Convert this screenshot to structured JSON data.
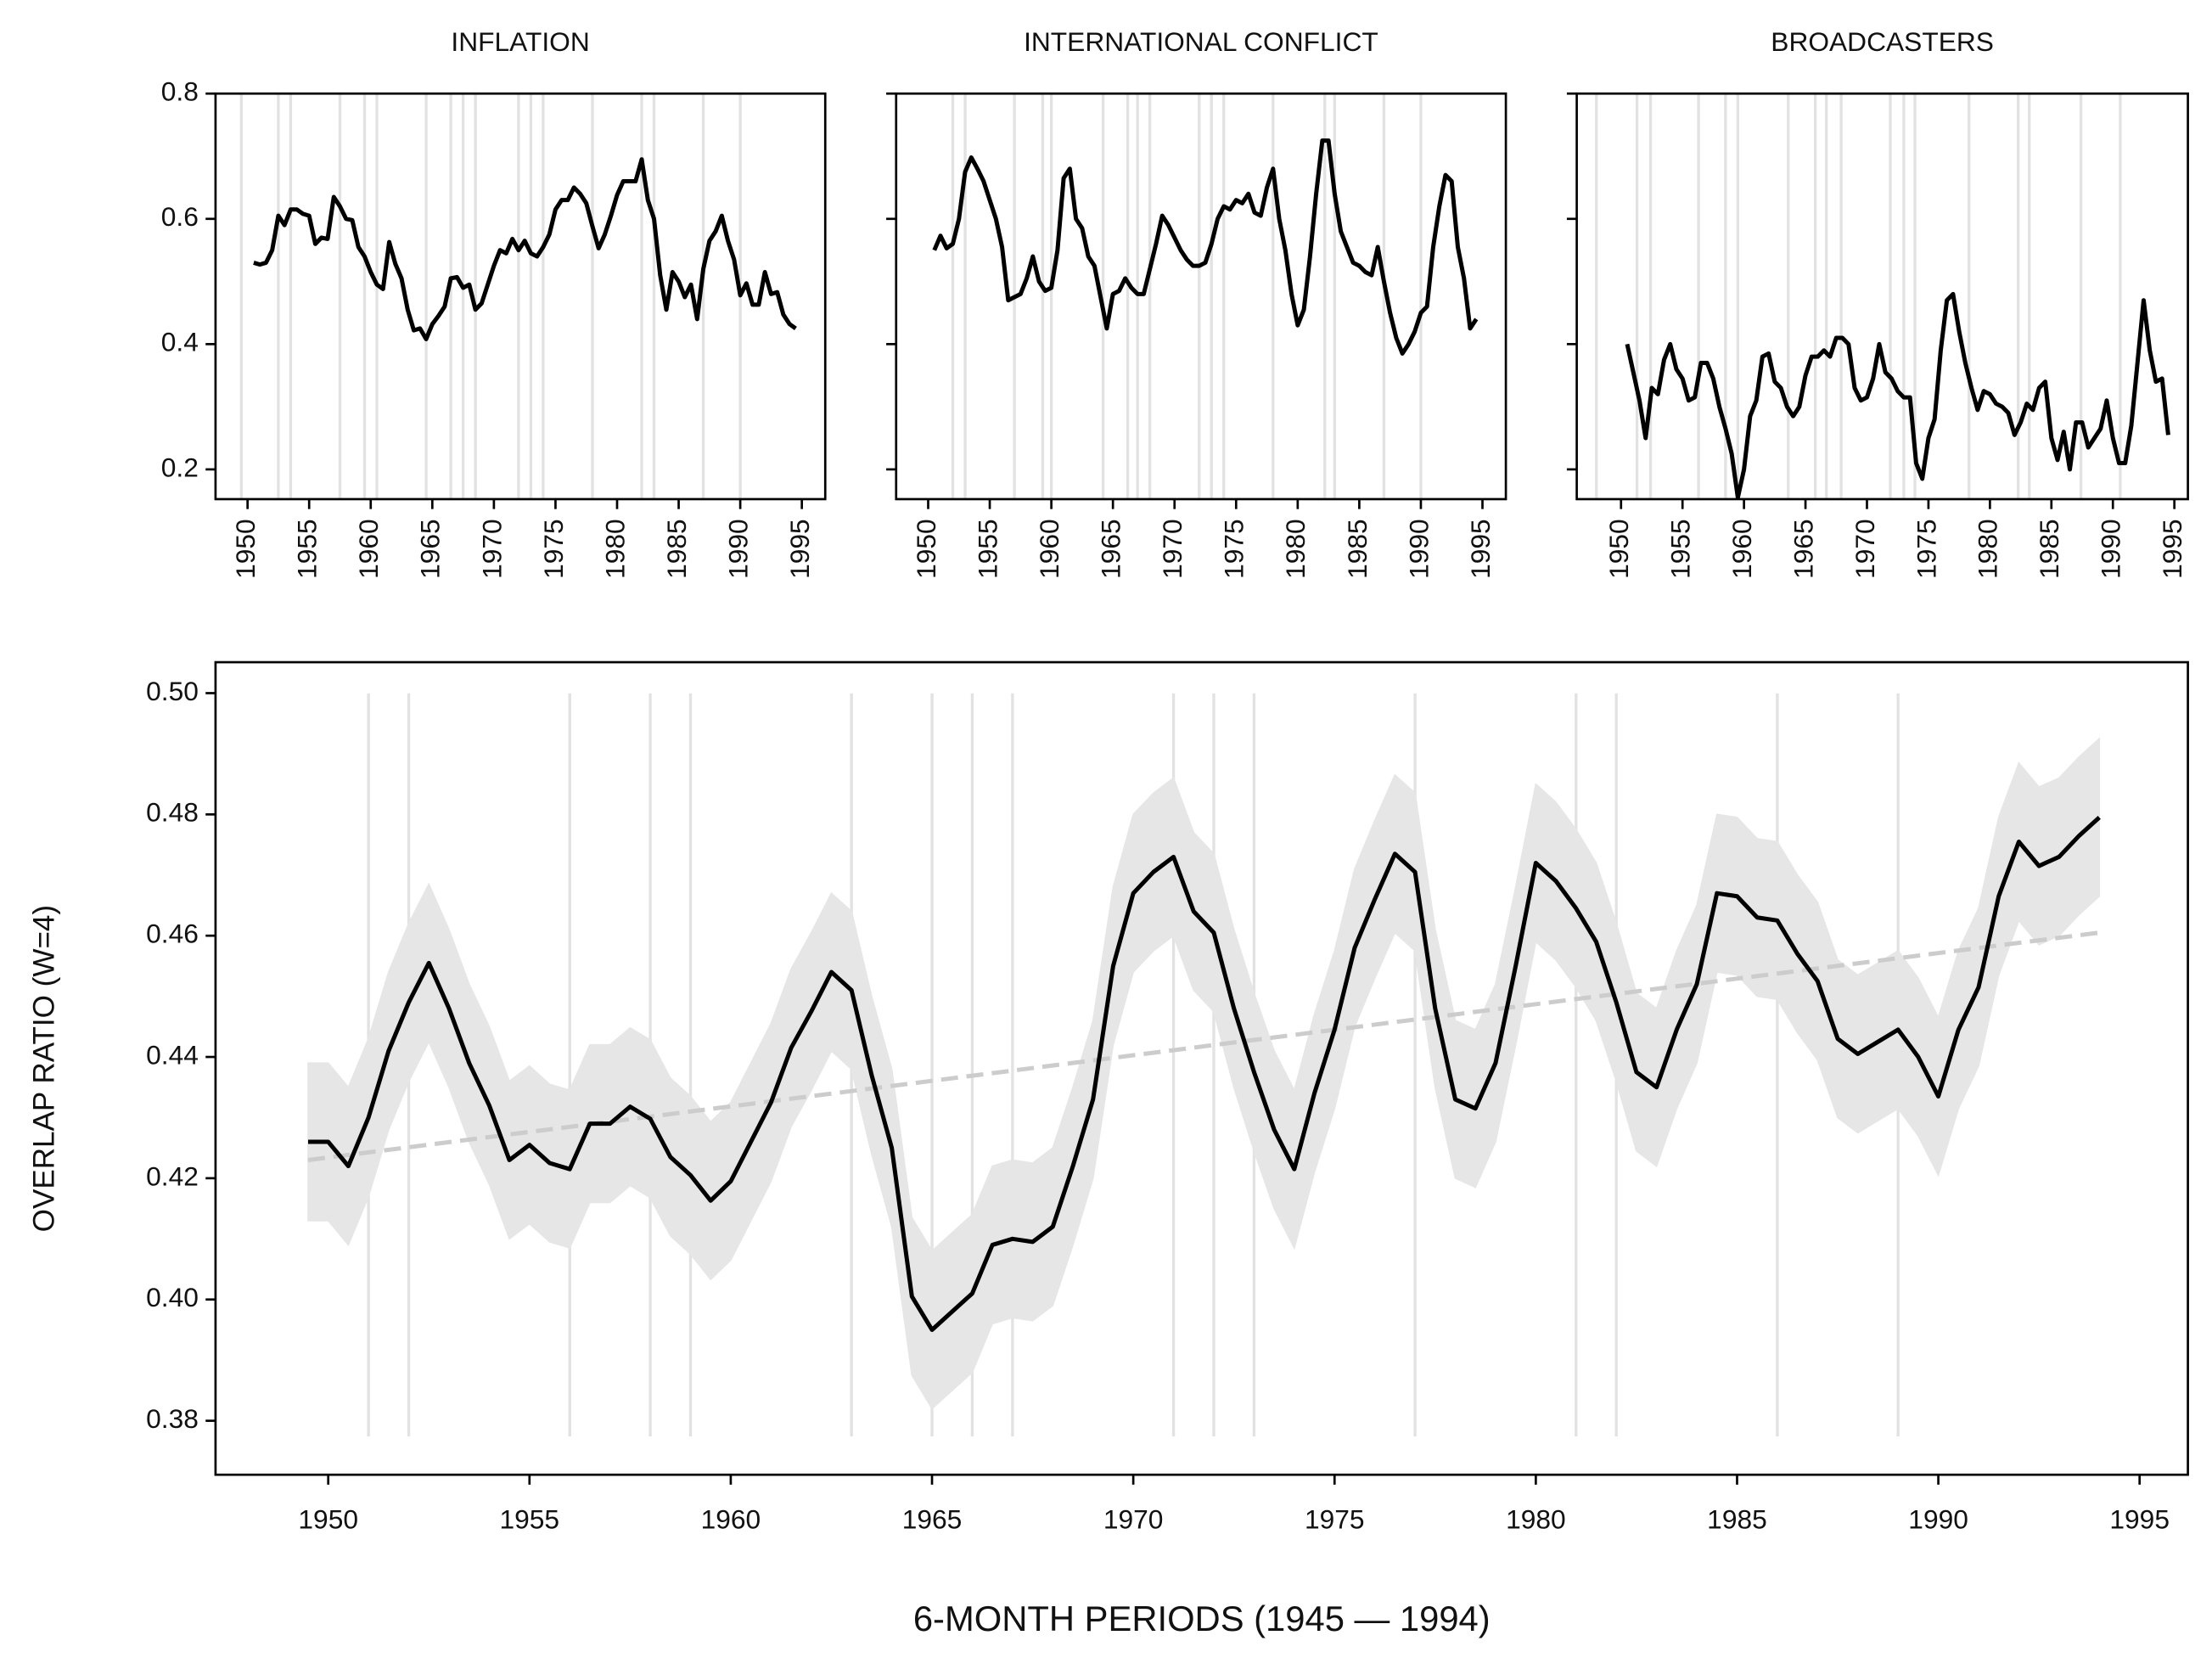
{
  "chart_data": [
    {
      "type": "line",
      "title": "INFLATION",
      "x": [
        1950.5,
        1951,
        1951.5,
        1952,
        1952.5,
        1953,
        1953.5,
        1954,
        1954.5,
        1955,
        1955.5,
        1956,
        1956.5,
        1957,
        1957.5,
        1958,
        1958.5,
        1959,
        1959.5,
        1960,
        1960.5,
        1961,
        1961.5,
        1962,
        1962.5,
        1963,
        1963.5,
        1964,
        1964.5,
        1965,
        1965.5,
        1966,
        1966.5,
        1967,
        1967.5,
        1968,
        1968.5,
        1969,
        1969.5,
        1970,
        1970.5,
        1971,
        1971.5,
        1972,
        1972.5,
        1973,
        1973.5,
        1974,
        1974.5,
        1975,
        1975.5,
        1976,
        1976.5,
        1977,
        1977.5,
        1978,
        1978.5,
        1979,
        1979.5,
        1980,
        1980.5,
        1981,
        1981.5,
        1982,
        1982.5,
        1983,
        1983.5,
        1984,
        1984.5,
        1985,
        1985.5,
        1986,
        1986.5,
        1987,
        1987.5,
        1988,
        1988.5,
        1989,
        1989.5,
        1990,
        1990.5,
        1991,
        1991.5,
        1992,
        1992.5,
        1993,
        1993.5,
        1994,
        1994.5
      ],
      "series": [
        {
          "color": "#000000",
          "values": [
            0.53,
            0.527,
            0.53,
            0.55,
            0.605,
            0.59,
            0.615,
            0.615,
            0.608,
            0.605,
            0.56,
            0.57,
            0.568,
            0.635,
            0.62,
            0.6,
            0.598,
            0.555,
            0.54,
            0.515,
            0.495,
            0.488,
            0.563,
            0.528,
            0.505,
            0.455,
            0.422,
            0.425,
            0.408,
            0.432,
            0.445,
            0.46,
            0.505,
            0.507,
            0.49,
            0.495,
            0.455,
            0.465,
            0.495,
            0.525,
            0.55,
            0.545,
            0.568,
            0.55,
            0.565,
            0.545,
            0.54,
            0.555,
            0.575,
            0.615,
            0.63,
            0.63,
            0.65,
            0.64,
            0.625,
            0.588,
            0.553,
            0.575,
            0.605,
            0.638,
            0.66,
            0.66,
            0.66,
            0.695,
            0.63,
            0.6,
            0.51,
            0.455,
            0.515,
            0.5,
            0.475,
            0.495,
            0.44,
            0.52,
            0.565,
            0.58,
            0.605,
            0.565,
            0.535,
            0.478,
            0.497,
            0.463,
            0.463,
            0.515,
            0.48,
            0.483,
            0.447,
            0.432,
            0.425
          ]
        }
      ],
      "event_lines": [
        1949.5,
        1952.5,
        1953.5,
        1957.5,
        1959.5,
        1960.5,
        1964.5,
        1966.5,
        1967.5,
        1968.5,
        1972,
        1973,
        1974,
        1978,
        1982,
        1983,
        1987,
        1990
      ],
      "event_color": "#e2e2e2",
      "xlim": [
        1947.4,
        1996.9
      ],
      "ylim": [
        0.1525,
        0.8
      ],
      "xticks": [
        1950,
        1955,
        1960,
        1965,
        1970,
        1975,
        1980,
        1985,
        1990,
        1995
      ],
      "yticks": [
        0.2,
        0.4,
        0.6,
        0.8
      ]
    },
    {
      "type": "line",
      "title": "INTERNATIONAL CONFLICT",
      "x": [
        1950.5,
        1951,
        1951.5,
        1952,
        1952.5,
        1953,
        1953.5,
        1954,
        1954.5,
        1955,
        1955.5,
        1956,
        1956.5,
        1957,
        1957.5,
        1958,
        1958.5,
        1959,
        1959.5,
        1960,
        1960.5,
        1961,
        1961.5,
        1962,
        1962.5,
        1963,
        1963.5,
        1964,
        1964.5,
        1965,
        1965.5,
        1966,
        1966.5,
        1967,
        1967.5,
        1968,
        1968.5,
        1969,
        1969.5,
        1970,
        1970.5,
        1971,
        1971.5,
        1972,
        1972.5,
        1973,
        1973.5,
        1974,
        1974.5,
        1975,
        1975.5,
        1976,
        1976.5,
        1977,
        1977.5,
        1978,
        1978.5,
        1979,
        1979.5,
        1980,
        1980.5,
        1981,
        1981.5,
        1982,
        1982.5,
        1983,
        1983.5,
        1984,
        1984.5,
        1985,
        1985.5,
        1986,
        1986.5,
        1987,
        1987.5,
        1988,
        1988.5,
        1989,
        1989.5,
        1990,
        1990.5,
        1991,
        1991.5,
        1992,
        1992.5,
        1993,
        1993.5,
        1994,
        1994.5
      ],
      "series": [
        {
          "color": "#000000",
          "values": [
            0.55,
            0.573,
            0.553,
            0.56,
            0.6,
            0.675,
            0.698,
            0.68,
            0.66,
            0.63,
            0.6,
            0.555,
            0.47,
            0.475,
            0.48,
            0.505,
            0.54,
            0.5,
            0.485,
            0.49,
            0.55,
            0.665,
            0.68,
            0.6,
            0.585,
            0.54,
            0.525,
            0.475,
            0.425,
            0.48,
            0.485,
            0.505,
            0.49,
            0.48,
            0.48,
            0.52,
            0.56,
            0.605,
            0.59,
            0.57,
            0.55,
            0.535,
            0.525,
            0.525,
            0.53,
            0.56,
            0.6,
            0.62,
            0.615,
            0.63,
            0.625,
            0.64,
            0.61,
            0.605,
            0.65,
            0.68,
            0.6,
            0.55,
            0.48,
            0.43,
            0.455,
            0.54,
            0.64,
            0.725,
            0.725,
            0.64,
            0.58,
            0.555,
            0.53,
            0.525,
            0.515,
            0.51,
            0.555,
            0.5,
            0.45,
            0.41,
            0.385,
            0.4,
            0.42,
            0.45,
            0.46,
            0.555,
            0.62,
            0.67,
            0.66,
            0.555,
            0.505,
            0.425,
            0.44
          ]
        }
      ],
      "event_lines": [
        1952,
        1953,
        1957,
        1959.3,
        1960,
        1964.2,
        1966.2,
        1967,
        1968,
        1972,
        1973,
        1974,
        1978,
        1982.2,
        1983,
        1987,
        1990
      ],
      "event_color": "#e2e2e2",
      "xlim": [
        1947.4,
        1996.9
      ],
      "ylim": [
        0.1525,
        0.8
      ],
      "sharey": true,
      "xticks": [
        1950,
        1955,
        1960,
        1965,
        1970,
        1975,
        1980,
        1985,
        1990,
        1995
      ],
      "yticks": [
        0.2,
        0.4,
        0.6,
        0.8
      ]
    },
    {
      "type": "line",
      "title": "BROADCASTERS",
      "x": [
        1950.5,
        1951,
        1951.5,
        1952,
        1952.5,
        1953,
        1953.5,
        1954,
        1954.5,
        1955,
        1955.5,
        1956,
        1956.5,
        1957,
        1957.5,
        1958,
        1958.5,
        1959,
        1959.5,
        1960,
        1960.5,
        1961,
        1961.5,
        1962,
        1962.5,
        1963,
        1963.5,
        1964,
        1964.5,
        1965,
        1965.5,
        1966,
        1966.5,
        1967,
        1967.5,
        1968,
        1968.5,
        1969,
        1969.5,
        1970,
        1970.5,
        1971,
        1971.5,
        1972,
        1972.5,
        1973,
        1973.5,
        1974,
        1974.5,
        1975,
        1975.5,
        1976,
        1976.5,
        1977,
        1977.5,
        1978,
        1978.5,
        1979,
        1979.5,
        1980,
        1980.5,
        1981,
        1981.5,
        1982,
        1982.5,
        1983,
        1983.5,
        1984,
        1984.5,
        1985,
        1985.5,
        1986,
        1986.5,
        1987,
        1987.5,
        1988,
        1988.5,
        1989,
        1989.5,
        1990,
        1990.5,
        1991,
        1991.5,
        1992,
        1992.5,
        1993,
        1993.5,
        1994,
        1994.5
      ],
      "series": [
        {
          "color": "#000000",
          "values": [
            0.4,
            0.355,
            0.31,
            0.25,
            0.33,
            0.32,
            0.375,
            0.4,
            0.36,
            0.345,
            0.31,
            0.315,
            0.37,
            0.37,
            0.345,
            0.3,
            0.265,
            0.225,
            0.155,
            0.2,
            0.285,
            0.31,
            0.38,
            0.385,
            0.34,
            0.33,
            0.3,
            0.285,
            0.3,
            0.35,
            0.38,
            0.38,
            0.39,
            0.38,
            0.41,
            0.41,
            0.4,
            0.33,
            0.31,
            0.315,
            0.345,
            0.4,
            0.355,
            0.345,
            0.325,
            0.315,
            0.315,
            0.21,
            0.185,
            0.25,
            0.28,
            0.39,
            0.47,
            0.48,
            0.42,
            0.37,
            0.33,
            0.295,
            0.325,
            0.32,
            0.305,
            0.3,
            0.29,
            0.255,
            0.275,
            0.305,
            0.295,
            0.33,
            0.34,
            0.25,
            0.215,
            0.26,
            0.2,
            0.275,
            0.275,
            0.235,
            0.25,
            0.265,
            0.31,
            0.25,
            0.21,
            0.21,
            0.27,
            0.37,
            0.47,
            0.39,
            0.34,
            0.345,
            0.255
          ]
        }
      ],
      "event_lines": [
        1948,
        1951.3,
        1952.4,
        1956.3,
        1958.5,
        1959.5,
        1963.6,
        1965.8,
        1966.7,
        1967.9,
        1971.9,
        1973,
        1973.9,
        1978.3,
        1982.3,
        1983.2,
        1987.4,
        1990.6
      ],
      "event_color": "#e2e2e2",
      "xlim": [
        1946.4,
        1996.1
      ],
      "ylim": [
        0.1525,
        0.8
      ],
      "sharey": true,
      "xticks": [
        1950,
        1955,
        1960,
        1965,
        1970,
        1975,
        1980,
        1985,
        1990,
        1995
      ],
      "yticks": [
        0.2,
        0.4,
        0.6,
        0.8
      ]
    },
    {
      "type": "line",
      "xlabel": "6-MONTH PERIODS (1945 — 1994)",
      "ylabel": "OVERLAP RATIO (W=4)",
      "x": [
        1949.5,
        1950,
        1950.5,
        1951,
        1951.5,
        1952,
        1952.5,
        1953,
        1953.5,
        1954,
        1954.5,
        1955,
        1955.5,
        1956,
        1956.5,
        1957,
        1957.5,
        1958,
        1958.5,
        1959,
        1959.5,
        1960,
        1960.5,
        1961,
        1961.5,
        1962,
        1962.5,
        1963,
        1963.5,
        1964,
        1964.5,
        1965,
        1965.5,
        1966,
        1966.5,
        1967,
        1967.5,
        1968,
        1968.5,
        1969,
        1969.5,
        1970,
        1970.5,
        1971,
        1971.5,
        1972,
        1972.5,
        1973,
        1973.5,
        1974,
        1974.5,
        1975,
        1975.5,
        1976,
        1976.5,
        1977,
        1977.5,
        1978,
        1978.5,
        1979,
        1979.5,
        1980,
        1980.5,
        1981,
        1981.5,
        1982,
        1982.5,
        1983,
        1983.5,
        1984,
        1984.5,
        1985,
        1985.5,
        1986,
        1986.5,
        1987,
        1987.5,
        1988,
        1988.5,
        1989,
        1989.5,
        1990,
        1990.5,
        1991,
        1991.5,
        1992,
        1992.5,
        1993,
        1993.5,
        1994
      ],
      "series": [
        {
          "color": "#000000",
          "band_color": "#e6e6e6",
          "values": [
            0.426,
            0.426,
            0.422,
            0.43,
            0.441,
            0.449,
            0.4555,
            0.448,
            0.439,
            0.432,
            0.423,
            0.4255,
            0.4225,
            0.4215,
            0.429,
            0.429,
            0.4318,
            0.4298,
            0.4235,
            0.4205,
            0.4163,
            0.4195,
            0.426,
            0.4325,
            0.4415,
            0.4475,
            0.454,
            0.451,
            0.437,
            0.425,
            0.4005,
            0.395,
            0.398,
            0.401,
            0.409,
            0.41,
            0.4095,
            0.412,
            0.422,
            0.433,
            0.455,
            0.467,
            0.4705,
            0.473,
            0.464,
            0.4605,
            0.448,
            0.4375,
            0.428,
            0.4215,
            0.434,
            0.4445,
            0.458,
            0.466,
            0.4735,
            0.4705,
            0.448,
            0.433,
            0.4315,
            0.439,
            0.455,
            0.472,
            0.469,
            0.4645,
            0.459,
            0.449,
            0.4375,
            0.435,
            0.4445,
            0.452,
            0.467,
            0.4665,
            0.463,
            0.4625,
            0.457,
            0.4525,
            0.443,
            0.4405,
            0.4425,
            0.4445,
            0.44,
            0.4335,
            0.4445,
            0.4515,
            0.4665,
            0.4755,
            0.4715,
            0.473,
            0.4765,
            0.4795
          ],
          "errors": [
            0.013,
            0.013,
            0.013,
            0.013,
            0.013,
            0.013,
            0.013,
            0.013,
            0.013,
            0.013,
            0.013,
            0.013,
            0.013,
            0.013,
            0.013,
            0.013,
            0.013,
            0.013,
            0.013,
            0.013,
            0.013,
            0.013,
            0.013,
            0.013,
            0.013,
            0.013,
            0.013,
            0.013,
            0.013,
            0.013,
            0.013,
            0.013,
            0.013,
            0.013,
            0.013,
            0.013,
            0.013,
            0.013,
            0.013,
            0.013,
            0.013,
            0.013,
            0.013,
            0.013,
            0.013,
            0.013,
            0.013,
            0.013,
            0.013,
            0.013,
            0.013,
            0.013,
            0.013,
            0.013,
            0.013,
            0.013,
            0.013,
            0.013,
            0.013,
            0.013,
            0.013,
            0.013,
            0.013,
            0.013,
            0.013,
            0.013,
            0.013,
            0.013,
            0.013,
            0.013,
            0.013,
            0.013,
            0.013,
            0.013,
            0.013,
            0.013,
            0.013,
            0.013,
            0.013,
            0.013,
            0.013,
            0.013,
            0.013,
            0.013,
            0.013,
            0.013,
            0.013,
            0.013,
            0.013,
            0.013
          ]
        }
      ],
      "trend": {
        "x": [
          1949.5,
          1994
        ],
        "values": [
          0.423,
          0.4605
        ],
        "color": "#cccccc",
        "dashed": true
      },
      "event_lines": [
        1951,
        1952,
        1956,
        1958,
        1959,
        1963,
        1965,
        1966,
        1967,
        1971,
        1972,
        1973,
        1977,
        1981,
        1982,
        1986,
        1989
      ],
      "event_color": "#e2e2e2",
      "xlim": [
        1947.2,
        1996.2
      ],
      "ylim": [
        0.3711,
        0.5051
      ],
      "xticks": [
        1950,
        1955,
        1960,
        1965,
        1970,
        1975,
        1980,
        1985,
        1990,
        1995
      ],
      "yticks": [
        0.38,
        {
          "value": 0.4,
          "label": "0.40"
        },
        0.42,
        0.44,
        0.46,
        0.48,
        {
          "value": 0.5,
          "label": "0.50"
        }
      ]
    }
  ]
}
